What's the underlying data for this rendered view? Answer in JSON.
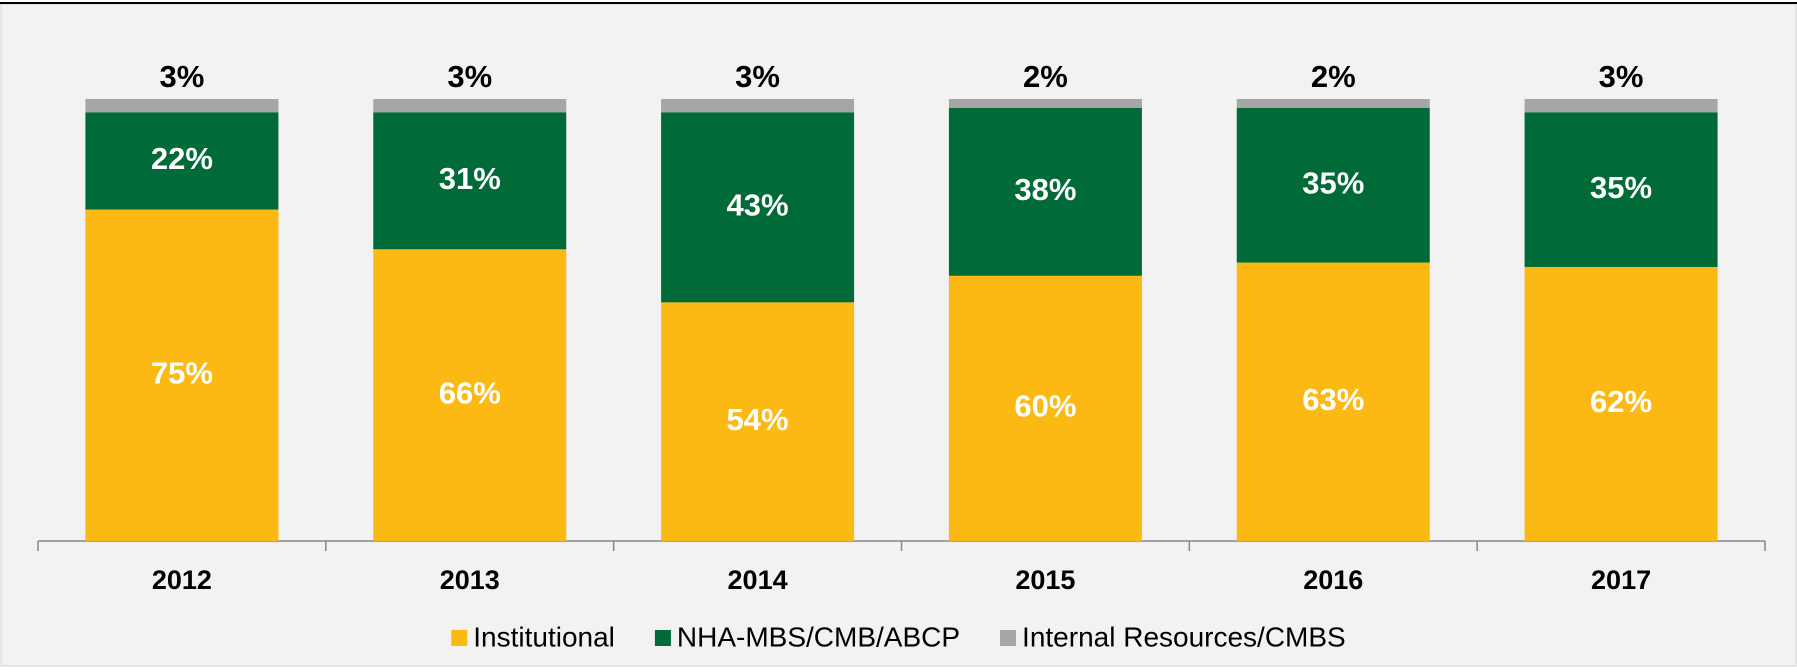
{
  "chart_data": {
    "type": "stacked_bar",
    "categories": [
      "2012",
      "2013",
      "2014",
      "2015",
      "2016",
      "2017"
    ],
    "series": [
      {
        "name": "Institutional",
        "color": "#FDB913",
        "values": [
          75,
          66,
          54,
          60,
          63,
          62
        ],
        "value_labels": [
          "75%",
          "66%",
          "54%",
          "60%",
          "63%",
          "62%"
        ]
      },
      {
        "name": "NHA-MBS/CMB/ABCP",
        "color": "#006A38",
        "values": [
          22,
          31,
          43,
          38,
          35,
          35
        ],
        "value_labels": [
          "22%",
          "31%",
          "43%",
          "38%",
          "35%",
          "35%"
        ]
      },
      {
        "name": "Internal Resources/CMBS",
        "color": "#A6A6A6",
        "values": [
          3,
          3,
          3,
          2,
          2,
          3
        ],
        "value_labels": [
          "3%",
          "3%",
          "3%",
          "2%",
          "2%",
          "3%"
        ]
      }
    ],
    "legend": "bottom"
  }
}
